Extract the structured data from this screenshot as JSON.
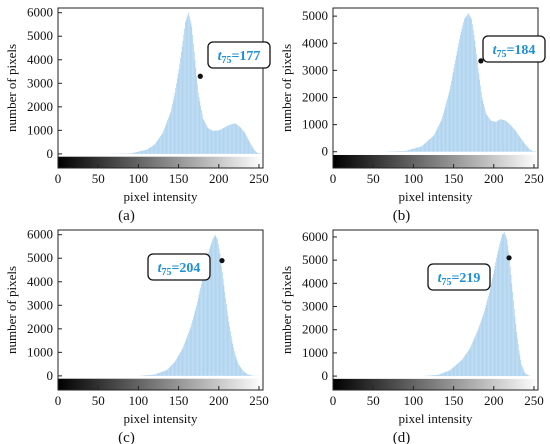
{
  "chart_data": [
    {
      "type": "bar",
      "panel_label": "(a)",
      "xlabel": "pixel intensity",
      "ylabel": "number of pixels",
      "xlim": [
        0,
        255
      ],
      "ylim": [
        -600,
        6200
      ],
      "xticks": [
        "0",
        "50",
        "100",
        "150",
        "200",
        "250"
      ],
      "yticks": [
        "0",
        "1000",
        "2000",
        "3000",
        "4000",
        "5000",
        "6000"
      ],
      "ytick_values": [
        0,
        1000,
        2000,
        3000,
        4000,
        5000,
        6000
      ],
      "bar_color": "#a7cfee",
      "profile": {
        "x": [
          0,
          60,
          90,
          110,
          120,
          130,
          140,
          145,
          150,
          155,
          158,
          162,
          166,
          170,
          174,
          180,
          186,
          192,
          200,
          208,
          214,
          220,
          226,
          232,
          238,
          244,
          248,
          255
        ],
        "y": [
          0,
          0,
          20,
          180,
          400,
          900,
          1800,
          2600,
          3600,
          4800,
          5600,
          6000,
          5400,
          4000,
          2600,
          1500,
          1100,
          980,
          1000,
          1150,
          1250,
          1300,
          1150,
          900,
          500,
          150,
          30,
          0
        ]
      },
      "annotation": {
        "label_t": "t",
        "label_sub": "75",
        "label_value": "=177",
        "x": 177,
        "y": 3300
      }
    },
    {
      "type": "bar",
      "panel_label": "(b)",
      "xlabel": "pixel intensity",
      "ylabel": "number of pixels",
      "xlim": [
        0,
        255
      ],
      "ylim": [
        -600,
        5300
      ],
      "xticks": [
        "0",
        "50",
        "100",
        "150",
        "200",
        "250"
      ],
      "yticks": [
        "0",
        "1000",
        "2000",
        "3000",
        "4000",
        "5000"
      ],
      "ytick_values": [
        0,
        1000,
        2000,
        3000,
        4000,
        5000
      ],
      "bar_color": "#a7cfee",
      "profile": {
        "x": [
          0,
          60,
          90,
          110,
          125,
          135,
          145,
          152,
          158,
          163,
          168,
          172,
          176,
          180,
          185,
          190,
          196,
          202,
          208,
          214,
          220,
          226,
          232,
          238,
          244,
          248,
          255
        ],
        "y": [
          0,
          0,
          30,
          200,
          600,
          1200,
          2300,
          3400,
          4300,
          4900,
          5100,
          4900,
          4100,
          3100,
          2000,
          1400,
          1150,
          1100,
          1200,
          1150,
          1000,
          800,
          550,
          300,
          100,
          20,
          0
        ]
      },
      "annotation": {
        "label_t": "t",
        "label_sub": "75",
        "label_value": "=184",
        "x": 184,
        "y": 3350
      }
    },
    {
      "type": "bar",
      "panel_label": "(c)",
      "xlabel": "pixel intensity",
      "ylabel": "number of pixels",
      "xlim": [
        0,
        255
      ],
      "ylim": [
        -600,
        6200
      ],
      "xticks": [
        "0",
        "50",
        "100",
        "150",
        "200",
        "250"
      ],
      "yticks": [
        "0",
        "1000",
        "2000",
        "3000",
        "4000",
        "5000",
        "6000"
      ],
      "ytick_values": [
        0,
        1000,
        2000,
        3000,
        4000,
        5000,
        6000
      ],
      "bar_color": "#a7cfee",
      "profile": {
        "x": [
          0,
          100,
          120,
          135,
          145,
          155,
          165,
          172,
          178,
          183,
          188,
          192,
          195,
          198,
          201,
          204,
          208,
          212,
          216,
          220,
          224,
          230,
          236,
          242,
          255
        ],
        "y": [
          0,
          0,
          60,
          250,
          600,
          1200,
          2100,
          3000,
          3900,
          4700,
          5400,
          5800,
          6000,
          5800,
          5200,
          4400,
          3300,
          2300,
          1500,
          900,
          500,
          200,
          60,
          10,
          0
        ]
      },
      "annotation": {
        "label_t": "t",
        "label_sub": "75",
        "label_value": "=204",
        "x": 204,
        "y": 4900
      }
    },
    {
      "type": "bar",
      "panel_label": "(d)",
      "xlabel": "pixel intensity",
      "ylabel": "number of pixels",
      "xlim": [
        0,
        255
      ],
      "ylim": [
        -600,
        6300
      ],
      "xticks": [
        "0",
        "50",
        "100",
        "150",
        "200",
        "250"
      ],
      "yticks": [
        "0",
        "1000",
        "2000",
        "3000",
        "4000",
        "5000",
        "6000"
      ],
      "ytick_values": [
        0,
        1000,
        2000,
        3000,
        4000,
        5000,
        6000
      ],
      "bar_color": "#a7cfee",
      "profile": {
        "x": [
          0,
          110,
          130,
          145,
          160,
          170,
          180,
          188,
          194,
          199,
          203,
          207,
          210,
          213,
          216,
          219,
          222,
          225,
          228,
          231,
          234,
          238,
          242,
          246,
          255
        ],
        "y": [
          0,
          0,
          50,
          250,
          700,
          1200,
          2000,
          2800,
          3600,
          4400,
          5100,
          5700,
          6100,
          6200,
          5900,
          5100,
          4000,
          2900,
          1900,
          1100,
          500,
          150,
          40,
          0,
          0
        ]
      },
      "annotation": {
        "label_t": "t",
        "label_sub": "75",
        "label_value": "=219",
        "x": 219,
        "y": 5100
      }
    }
  ]
}
